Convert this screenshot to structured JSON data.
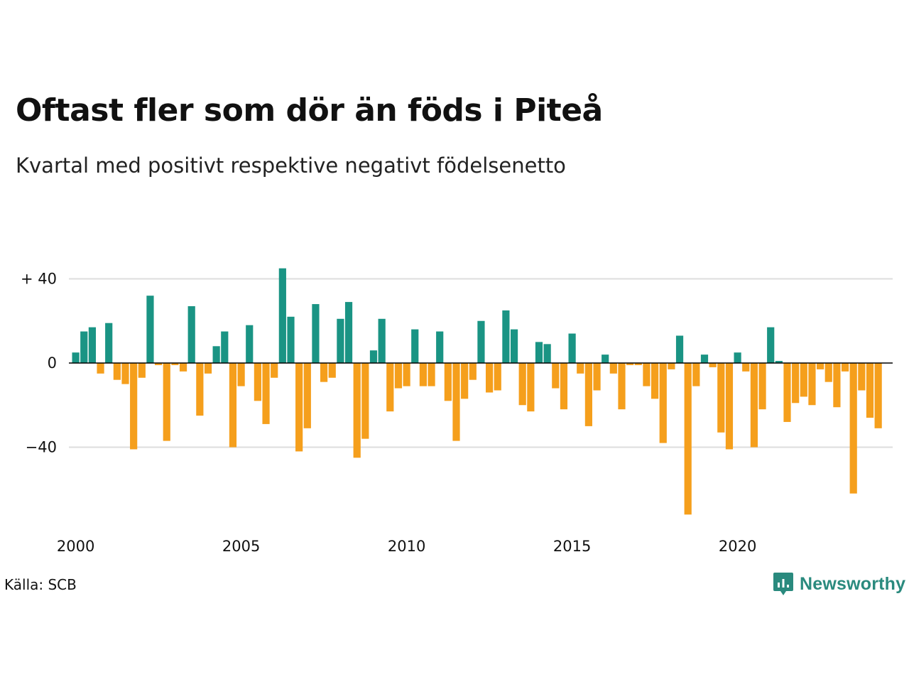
{
  "title": "Oftast fler som dör än föds i Piteå",
  "subtitle": "Kvartal med positivt respektive negativt födelsenetto",
  "source": "Källa: SCB",
  "brand": {
    "name": "Newsworthy",
    "icon": "newsworthy-logo-icon"
  },
  "colors": {
    "positive": "#1a9484",
    "negative": "#f59f1c",
    "grid": "#dddddd",
    "zero": "#000000"
  },
  "chart_data": {
    "type": "bar",
    "title": "Oftast fler som dör än föds i Piteå",
    "subtitle": "Kvartal med positivt respektive negativt födelsenetto",
    "xlabel": "",
    "ylabel": "",
    "ylim": [
      -75,
      45
    ],
    "grid": true,
    "legend": "none",
    "y_ticks": [
      40,
      0,
      -40
    ],
    "y_tick_labels": [
      "+ 40",
      "0",
      "−40"
    ],
    "x_tick_labels": [
      "2000",
      "2005",
      "2010",
      "2015",
      "2020"
    ],
    "first_year": 2000,
    "values": [
      5,
      15,
      17,
      -5,
      19,
      -8,
      -10,
      -41,
      -7,
      32,
      -1,
      -37,
      -1,
      -4,
      27,
      -25,
      -5,
      8,
      15,
      -40,
      -11,
      18,
      -18,
      -29,
      -7,
      45,
      22,
      -42,
      -31,
      28,
      -9,
      -7,
      21,
      29,
      -45,
      -36,
      6,
      21,
      -23,
      -12,
      -11,
      16,
      -11,
      -11,
      15,
      -18,
      -37,
      -17,
      -8,
      20,
      -14,
      -13,
      25,
      16,
      -20,
      -23,
      10,
      9,
      -12,
      -22,
      14,
      -5,
      -30,
      -13,
      4,
      -5,
      -22,
      -1,
      -1,
      -11,
      -17,
      -38,
      -3,
      13,
      -72,
      -11,
      4,
      -2,
      -33,
      -41,
      5,
      -4,
      -40,
      -22,
      17,
      1,
      -28,
      -19,
      -16,
      -20,
      -3,
      -9,
      -21,
      -4,
      -62,
      -13,
      -26,
      -31
    ]
  }
}
